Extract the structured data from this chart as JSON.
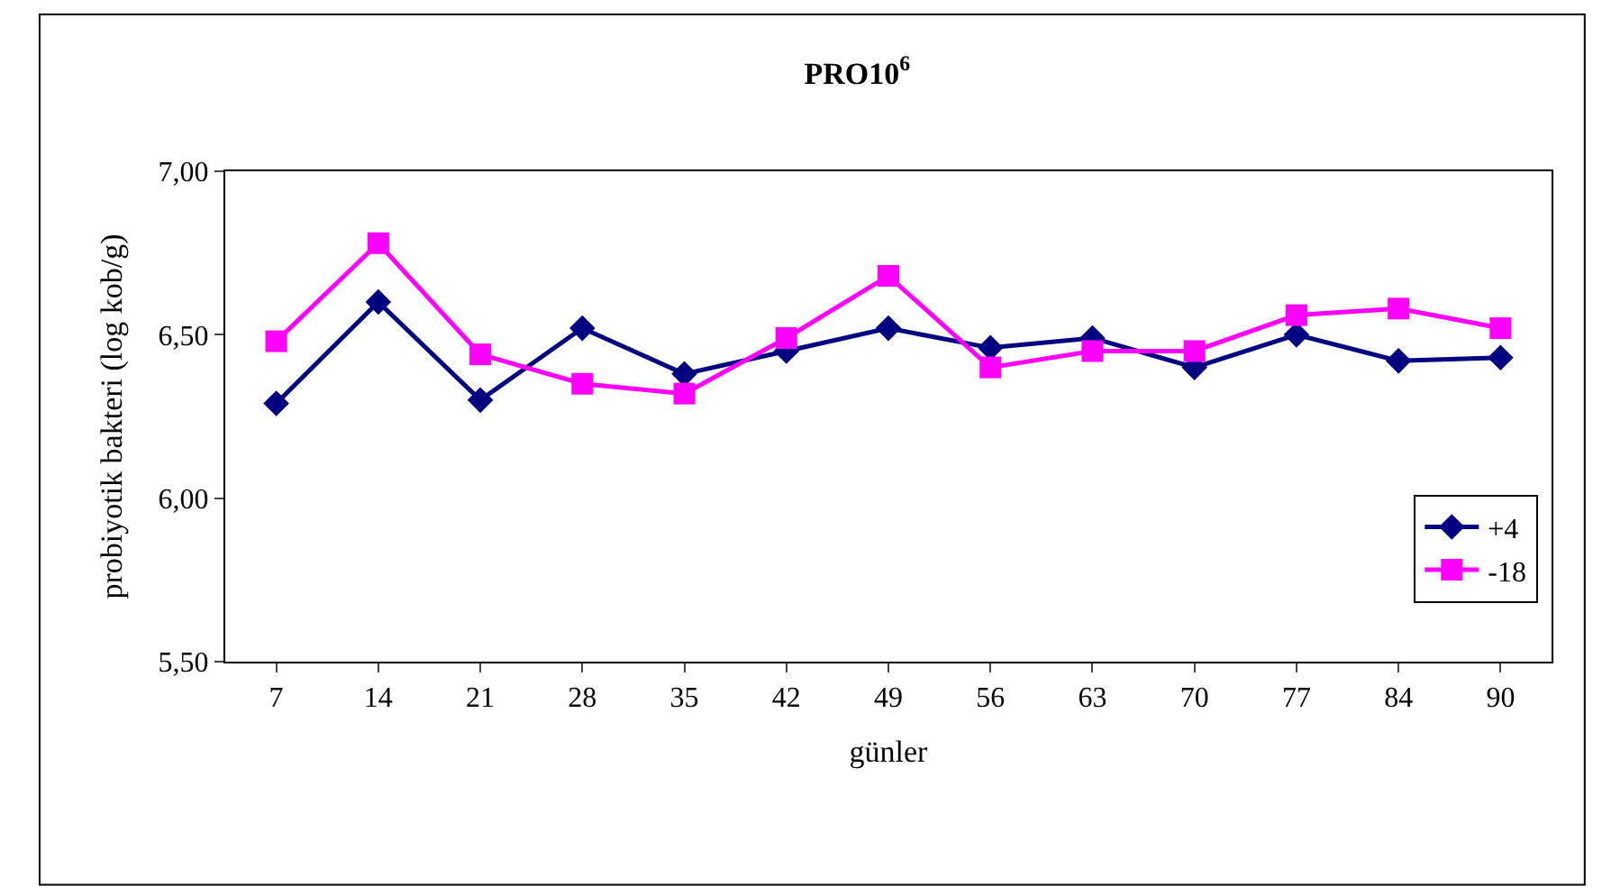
{
  "chart_data": {
    "type": "line",
    "title": "PRO10$^{6}$",
    "xlabel": "günler",
    "ylabel": "probiyotik bakteri (log kob/g)",
    "categories": [
      "7",
      "14",
      "21",
      "28",
      "35",
      "42",
      "49",
      "56",
      "63",
      "70",
      "77",
      "84",
      "90"
    ],
    "ylim": [
      5.5,
      7.0
    ],
    "yticks": [
      {
        "value": 5.5,
        "label": "5,50"
      },
      {
        "value": 6.0,
        "label": "6,00"
      },
      {
        "value": 6.5,
        "label": "6,50"
      },
      {
        "value": 7.0,
        "label": "7,00"
      }
    ],
    "grid": false,
    "legend": "bottom right",
    "line_style": "solid",
    "series": [
      {
        "name": "+4",
        "color": "#000080",
        "marker": "diamond",
        "values": [
          6.29,
          6.6,
          6.3,
          6.52,
          6.38,
          6.45,
          6.52,
          6.46,
          6.49,
          6.4,
          6.5,
          6.42,
          6.43
        ]
      },
      {
        "name": "-18",
        "color": "#ff00ff",
        "marker": "square",
        "values": [
          6.48,
          6.78,
          6.44,
          6.35,
          6.32,
          6.49,
          6.68,
          6.4,
          6.45,
          6.45,
          6.56,
          6.58,
          6.52
        ]
      }
    ]
  }
}
